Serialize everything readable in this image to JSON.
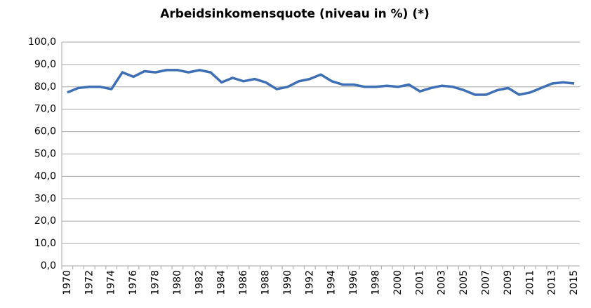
{
  "chart_data": {
    "type": "line",
    "title": "Arbeidsinkomensquote (niveau in %) (*)",
    "categories": [
      "1970",
      null,
      "1972",
      null,
      "1974",
      null,
      "1976",
      null,
      "1978",
      null,
      "1980",
      null,
      "1982",
      null,
      "1984",
      null,
      "1986",
      null,
      "1988",
      null,
      "1990",
      null,
      "1992",
      null,
      "1994",
      null,
      "1996",
      null,
      "1998",
      null,
      "2000",
      null,
      "2001",
      null,
      "2003",
      null,
      "2005",
      null,
      "2007",
      null,
      "2009",
      null,
      "2011",
      null,
      "2013",
      null,
      "2015"
    ],
    "series": [
      {
        "color": "#3e6fb4",
        "values": [
          77.5,
          79.5,
          80,
          80,
          79,
          86.5,
          84.5,
          87,
          86.5,
          87.5,
          87.5,
          86.5,
          87.5,
          86.5,
          82,
          84,
          82.5,
          83.5,
          82,
          79,
          80,
          82.5,
          83.5,
          85.5,
          82.5,
          81,
          81,
          80,
          80,
          80.5,
          80,
          81,
          78,
          79.5,
          80.5,
          80,
          78.5,
          76.5,
          76.5,
          78.5,
          79.5,
          76.5,
          77.5,
          79.5,
          81.5,
          82,
          81.5
        ]
      }
    ],
    "ylim": [
      0,
      100
    ],
    "yticks": [
      {
        "value": 0,
        "label": "0,0"
      },
      {
        "value": 10,
        "label": "10,0"
      },
      {
        "value": 20,
        "label": "20,0"
      },
      {
        "value": 30,
        "label": "30,0"
      },
      {
        "value": 40,
        "label": "40,0"
      },
      {
        "value": 50,
        "label": "50,0"
      },
      {
        "value": 60,
        "label": "60,0"
      },
      {
        "value": 70,
        "label": "70,0"
      },
      {
        "value": 80,
        "label": "80,0"
      },
      {
        "value": 90,
        "label": "90,0"
      },
      {
        "value": 100,
        "label": "100,0"
      }
    ],
    "grid": true
  }
}
